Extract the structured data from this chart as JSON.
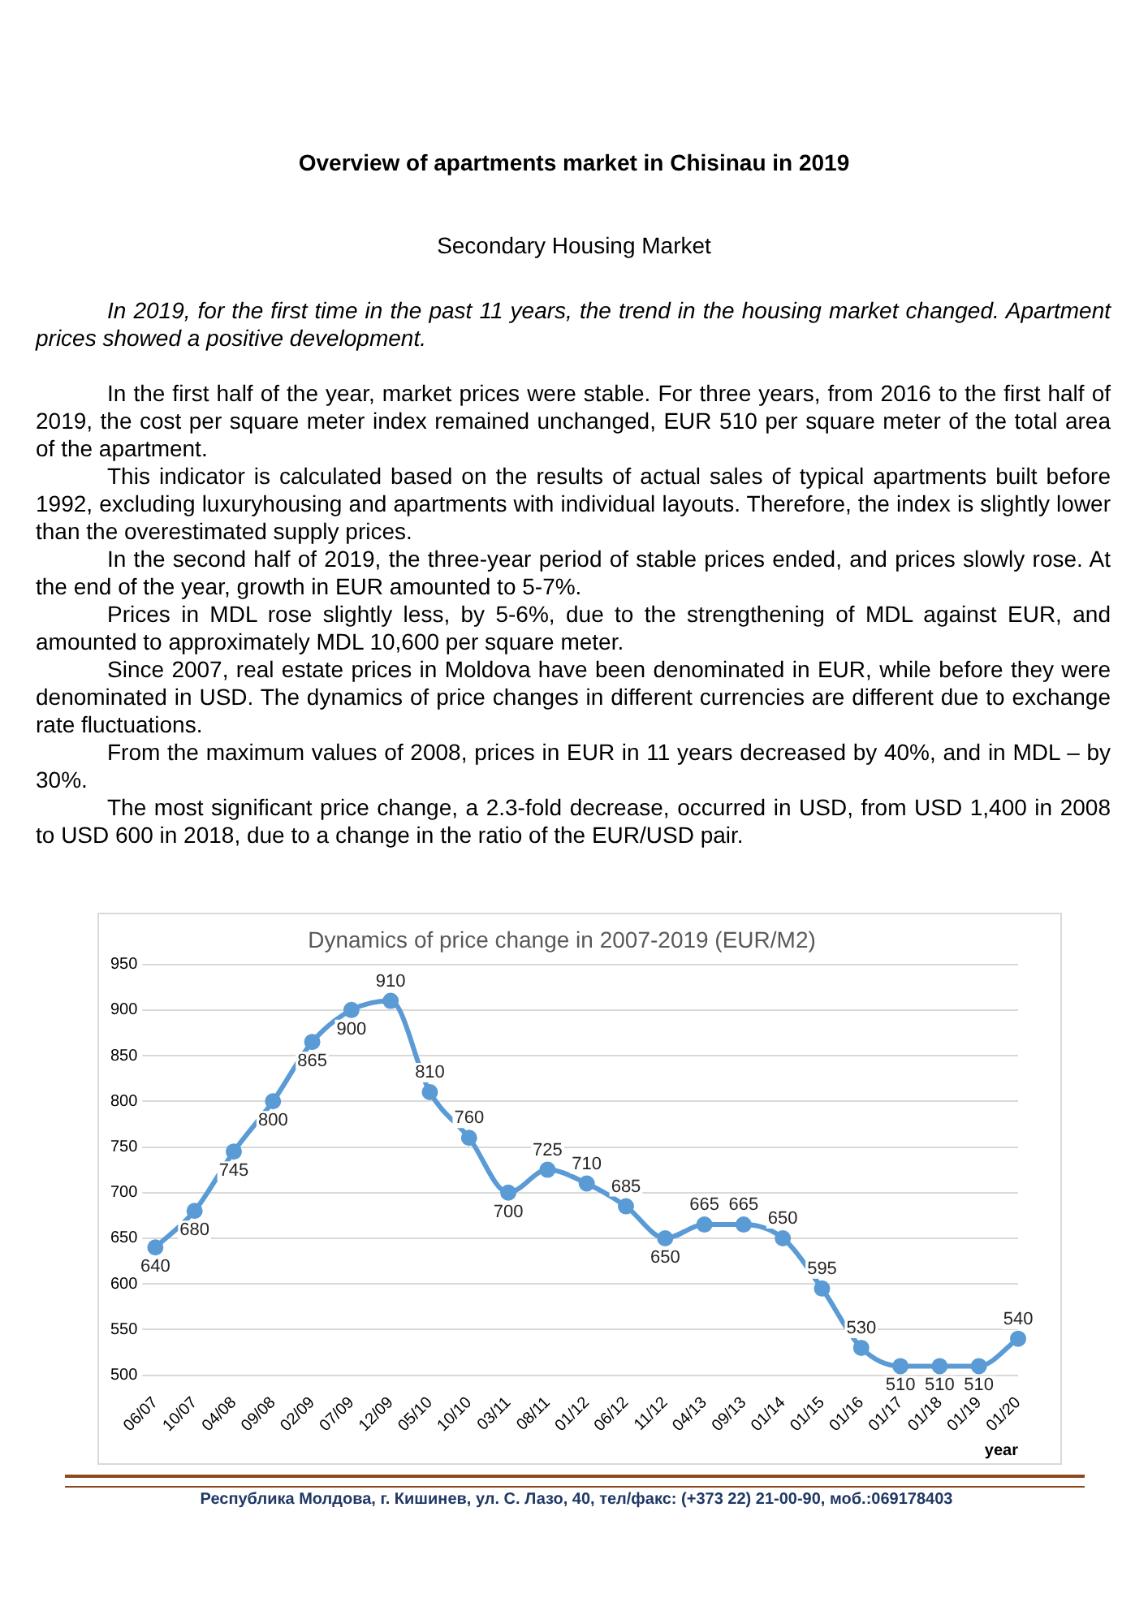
{
  "chart_data": {
    "type": "line",
    "title": "Dynamics of price change in 2007-2019 (EUR/M2)",
    "xlabel": "year",
    "categories": [
      "06/07",
      "10/07",
      "04/08",
      "09/08",
      "02/09",
      "07/09",
      "12/09",
      "05/10",
      "10/10",
      "03/11",
      "08/11",
      "01/12",
      "06/12",
      "11/12",
      "04/13",
      "09/13",
      "01/14",
      "01/15",
      "01/16",
      "01/17",
      "01/18",
      "01/19",
      "01/20"
    ],
    "series": [
      {
        "color": "#5b9bd5",
        "values": [
          640,
          680,
          745,
          800,
          865,
          900,
          910,
          810,
          760,
          700,
          725,
          710,
          685,
          650,
          665,
          665,
          650,
          595,
          530,
          510,
          510,
          510,
          540
        ]
      }
    ],
    "ylim": [
      500,
      950
    ],
    "yticks": [
      500,
      550,
      600,
      650,
      700,
      750,
      800,
      850,
      900,
      950
    ],
    "grid": "y",
    "marker": "circle",
    "data_labels": true,
    "annotations": [
      "Overview of apartments market in Chisinau in 2019",
      "Secondary Housing Market",
      "In 2019, for the first time in the past 11 years, the trend in the housing market changed. Apartment prices showed a positive development.",
      "In the first half of the year, market prices were stable. For three years, from 2016 to the first half of 2019, the cost per square meter index remained unchanged, EUR 510 per square meter of the total area of the apartment.",
      "This indicator is calculated based on the results of actual sales of typical apartments built before 1992, excluding luxuryhousing and apartments with individual layouts. Therefore, the index is slightly lower than the overestimated supply prices.",
      "In the second half of 2019, the three-year period of stable prices ended, and prices slowly rose. At the end of the year, growth in EUR amounted to 5-7%.",
      "Prices in MDL rose slightly less, by 5-6%, due to the strengthening of MDL against EUR, and amounted to approximately MDL 10,600 per square meter.",
      "Since 2007, real estate prices in Moldova have been denominated in EUR, while before they were denominated in USD. The dynamics of price changes in different currencies are different due to exchange rate fluctuations.",
      "From the maximum values of 2008, prices in EUR in 11 years decreased by 40%, and in MDL – by 30%.",
      "The most significant price change, a 2.3-fold decrease, occurred in USD, from USD 1,400 in 2008 to USD 600 in 2018, due to a change in the ratio of the EUR/USD pair.",
      "Республика Молдова, г. Кишинев, ул. С. Лазо, 40, тел/факс: (+373 22) 21-00-90, моб.:069178403"
    ]
  }
}
